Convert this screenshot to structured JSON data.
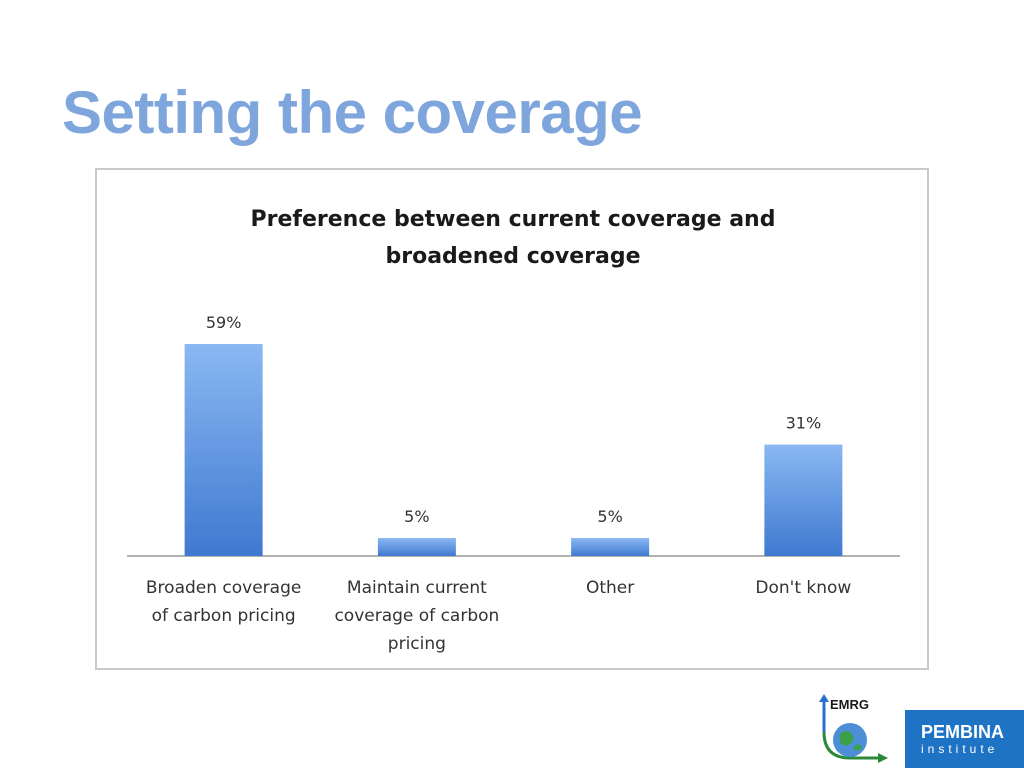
{
  "slide": {
    "title": "Setting the coverage"
  },
  "chart_data": {
    "type": "bar",
    "title_lines": [
      "Preference between current coverage and",
      "broadened coverage"
    ],
    "categories": [
      [
        "Broaden coverage",
        "of carbon pricing"
      ],
      [
        "Maintain current",
        "coverage of carbon",
        "pricing"
      ],
      [
        "Other"
      ],
      [
        "Don't know"
      ]
    ],
    "values": [
      59,
      5,
      5,
      31
    ],
    "data_labels": [
      "59%",
      "5%",
      "5%",
      "31%"
    ],
    "unit": "%",
    "ylim": [
      0,
      59
    ],
    "grid": false,
    "legend": false,
    "bar_color_top": "#8ab8f2",
    "bar_color_bottom": "#3f79d0"
  },
  "logos": {
    "emrg": "EMRG",
    "pembina_name": "PEMBINA",
    "pembina_sub": "institute"
  }
}
